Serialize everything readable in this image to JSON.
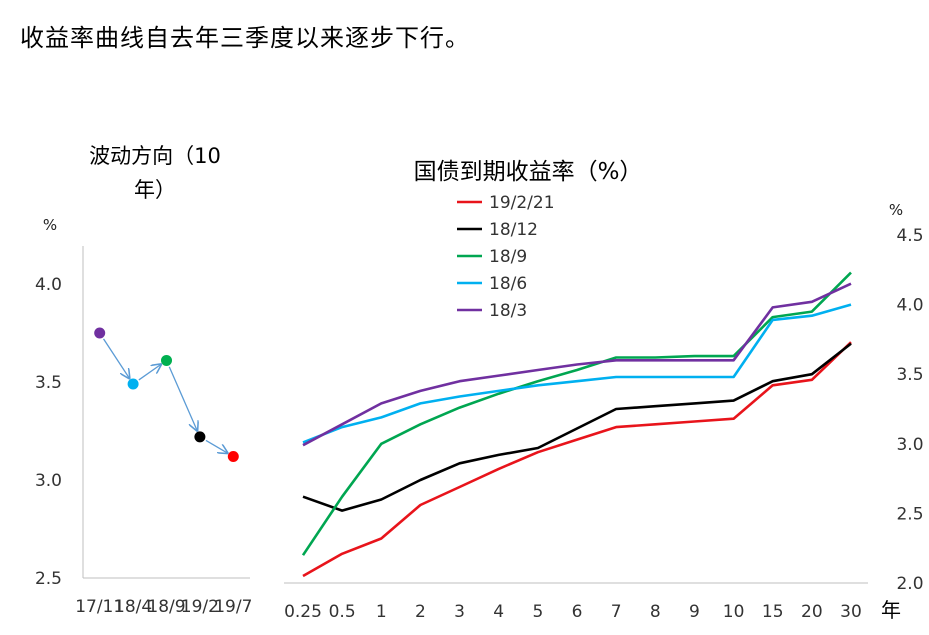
{
  "headline": "收益率曲线自去年三季度以来逐步下行。",
  "chart_data": [
    {
      "type": "scatter",
      "title_line1": "波动方向（10",
      "title_line2": "年）",
      "ylabel": "%",
      "ylim": [
        2.5,
        4.0
      ],
      "yticks": [
        "2.5",
        "3.0",
        "3.5",
        "4.0"
      ],
      "categories": [
        "17/11",
        "18/4",
        "18/9",
        "19/2",
        "19/7"
      ],
      "points": [
        {
          "x": 0.5,
          "y": 3.75,
          "color": "#7030a0"
        },
        {
          "x": 1.5,
          "y": 3.49,
          "color": "#00b0f0"
        },
        {
          "x": 2.5,
          "y": 3.61,
          "color": "#00b050"
        },
        {
          "x": 3.5,
          "y": 3.22,
          "color": "#000000"
        },
        {
          "x": 4.5,
          "y": 3.12,
          "color": "#ff0000"
        }
      ],
      "arrow_color": "#5b9bd5"
    },
    {
      "type": "line",
      "title": "国债到期收益率（%）",
      "ylabel": "%",
      "ylim": [
        2.0,
        4.5
      ],
      "yticks": [
        "2.0",
        "2.5",
        "3.0",
        "3.5",
        "4.0",
        "4.5"
      ],
      "xunit": "年",
      "categories": [
        "0.25",
        "0.5",
        "1",
        "2",
        "3",
        "4",
        "5",
        "6",
        "7",
        "8",
        "9",
        "10",
        "15",
        "20",
        "30"
      ],
      "series": [
        {
          "name": "19/2/21",
          "color": "#e8141b",
          "values": [
            2.05,
            2.21,
            2.32,
            2.56,
            2.69,
            2.82,
            2.94,
            3.03,
            3.12,
            3.14,
            3.16,
            3.18,
            3.42,
            3.46,
            3.73
          ]
        },
        {
          "name": "18/12",
          "color": "#000000",
          "values": [
            2.62,
            2.52,
            2.6,
            2.74,
            2.86,
            2.92,
            2.97,
            3.11,
            3.25,
            3.27,
            3.29,
            3.31,
            3.45,
            3.5,
            3.72
          ]
        },
        {
          "name": "18/9",
          "color": "#00a651",
          "values": [
            2.2,
            2.62,
            3.0,
            3.14,
            3.26,
            3.36,
            3.45,
            3.53,
            3.62,
            3.62,
            3.63,
            3.63,
            3.91,
            3.95,
            4.23
          ]
        },
        {
          "name": "18/6",
          "color": "#00b0f0",
          "values": [
            3.01,
            3.12,
            3.19,
            3.29,
            3.34,
            3.38,
            3.42,
            3.45,
            3.48,
            3.48,
            3.48,
            3.48,
            3.89,
            3.92,
            4.0
          ]
        },
        {
          "name": "18/3",
          "color": "#7030a0",
          "values": [
            2.99,
            3.14,
            3.29,
            3.38,
            3.45,
            3.49,
            3.53,
            3.57,
            3.6,
            3.6,
            3.6,
            3.6,
            3.98,
            4.02,
            4.15
          ]
        }
      ]
    }
  ]
}
